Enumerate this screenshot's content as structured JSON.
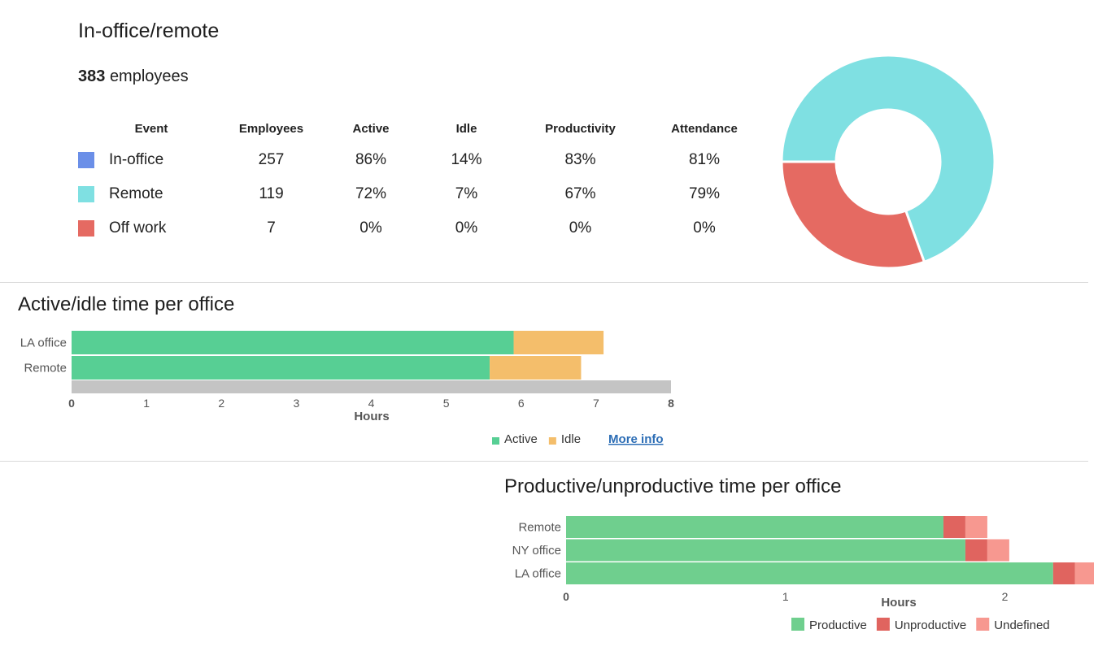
{
  "section1": {
    "title": "In-office/remote",
    "total_count": "383",
    "total_suffix": "employees",
    "columns": [
      "Event",
      "Employees",
      "Active",
      "Idle",
      "Productivity",
      "Attendance"
    ],
    "rows": [
      {
        "event": "In-office",
        "employees": "257",
        "active": "86%",
        "idle": "14%",
        "productivity": "83%",
        "attendance": "81%",
        "color": "#6b8fe8"
      },
      {
        "event": "Remote",
        "employees": "119",
        "active": "72%",
        "idle": "7%",
        "productivity": "67%",
        "attendance": "79%",
        "color": "#7fe0e2"
      },
      {
        "event": "Off work",
        "employees": "7",
        "active": "0%",
        "idle": "0%",
        "productivity": "0%",
        "attendance": "0%",
        "color": "#e56a62"
      }
    ]
  },
  "chart_data": [
    {
      "type": "pie",
      "variant": "donut",
      "slices": [
        {
          "label": "Remote",
          "value": 0.695,
          "color": "#7fe0e2"
        },
        {
          "label": "Off work",
          "value": 0.305,
          "color": "#e56a62"
        }
      ]
    },
    {
      "type": "bar",
      "orientation": "horizontal",
      "stacked": true,
      "title": "Active/idle time per office",
      "categories": [
        "LA office",
        "Remote"
      ],
      "series": [
        {
          "name": "Active",
          "values": [
            5.9,
            5.58
          ],
          "color": "#57cf94"
        },
        {
          "name": "Idle",
          "values": [
            1.2,
            1.22
          ],
          "color": "#f4be6b"
        }
      ],
      "background_bar": {
        "value": 8,
        "color": "#c4c4c4"
      },
      "xlabel": "Hours",
      "xlim": [
        0,
        8
      ],
      "xticks": [
        0,
        1,
        2,
        3,
        4,
        5,
        6,
        7,
        8
      ],
      "legend": "bottom-right",
      "link_label": "More info"
    },
    {
      "type": "bar",
      "orientation": "horizontal",
      "stacked": true,
      "title": "Productive/unproductive time per office",
      "categories": [
        "Remote",
        "NY office",
        "LA office"
      ],
      "series": [
        {
          "name": "Productive",
          "values": [
            1.72,
            1.82,
            2.22
          ],
          "color": "#6fcf8e"
        },
        {
          "name": "Unproductive",
          "values": [
            0.1,
            0.1,
            0.1
          ],
          "color": "#e0645f"
        },
        {
          "name": "Undefined",
          "values": [
            0.1,
            0.1,
            0.1
          ],
          "color": "#f79890"
        }
      ],
      "xlabel": "Hours",
      "xlim": [
        0,
        2.38
      ],
      "xticks": [
        0,
        1,
        2
      ],
      "legend": "bottom-right"
    }
  ]
}
